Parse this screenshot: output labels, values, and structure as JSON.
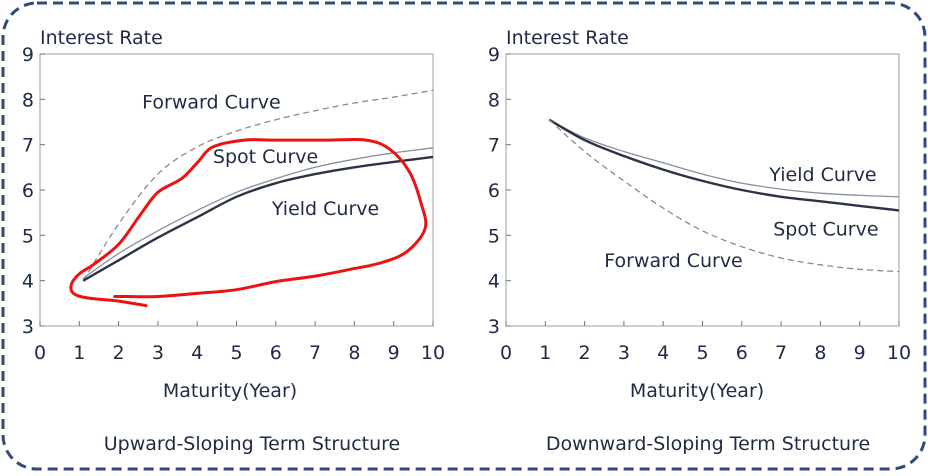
{
  "frame": {
    "border_color": "#2f4a7a"
  },
  "chart_data": [
    {
      "type": "line",
      "xlabel": "Maturity(Year)",
      "ylabel": "Interest Rate",
      "caption": "Upward-Sloping Term Structure",
      "xlim": [
        0,
        10
      ],
      "ylim": [
        3,
        9
      ],
      "xticks": [
        0,
        1,
        2,
        3,
        4,
        5,
        6,
        7,
        8,
        9,
        10
      ],
      "yticks": [
        3,
        4,
        5,
        6,
        7,
        8,
        9
      ],
      "series": [
        {
          "name": "Forward Curve",
          "style": "dashed",
          "color": "#8a8a8a",
          "x": [
            1.1,
            2,
            3,
            4,
            5,
            6,
            7,
            8,
            9,
            10
          ],
          "y": [
            4.0,
            5.25,
            6.35,
            6.95,
            7.3,
            7.55,
            7.75,
            7.92,
            8.05,
            8.2
          ]
        },
        {
          "name": "Spot Curve",
          "style": "thin",
          "color": "#8a8e9a",
          "x": [
            1.1,
            2,
            3,
            4,
            5,
            6,
            7,
            8,
            9,
            10
          ],
          "y": [
            4.05,
            4.6,
            5.1,
            5.55,
            5.95,
            6.25,
            6.5,
            6.68,
            6.82,
            6.93
          ]
        },
        {
          "name": "Yield Curve",
          "style": "thick",
          "color": "#2b3347",
          "x": [
            1.1,
            2,
            3,
            4,
            5,
            6,
            7,
            8,
            9,
            10
          ],
          "y": [
            4.0,
            4.45,
            4.95,
            5.4,
            5.85,
            6.15,
            6.35,
            6.5,
            6.62,
            6.73
          ]
        }
      ],
      "labels": [
        {
          "text": "Forward Curve",
          "x": 2.6,
          "y": 7.8
        },
        {
          "text": "Spot Curve",
          "x": 4.4,
          "y": 6.6
        },
        {
          "text": "Yield Curve",
          "x": 5.9,
          "y": 5.45
        }
      ]
    },
    {
      "type": "line",
      "xlabel": "Maturity(Year)",
      "ylabel": "Interest Rate",
      "caption": "Downward-Sloping Term Structure",
      "xlim": [
        0,
        10
      ],
      "ylim": [
        3,
        9
      ],
      "xticks": [
        0,
        1,
        2,
        3,
        4,
        5,
        6,
        7,
        8,
        9,
        10
      ],
      "yticks": [
        3,
        4,
        5,
        6,
        7,
        8,
        9
      ],
      "series": [
        {
          "name": "Yield Curve",
          "style": "thin",
          "color": "#8a8e9a",
          "x": [
            1.1,
            2,
            3,
            4,
            5,
            6,
            7,
            8,
            9,
            10
          ],
          "y": [
            7.55,
            7.15,
            6.85,
            6.6,
            6.35,
            6.15,
            6.02,
            5.93,
            5.88,
            5.85
          ]
        },
        {
          "name": "Spot Curve",
          "style": "thick",
          "color": "#2b3347",
          "x": [
            1.1,
            2,
            3,
            4,
            5,
            6,
            7,
            8,
            9,
            10
          ],
          "y": [
            7.55,
            7.1,
            6.75,
            6.45,
            6.2,
            6.0,
            5.85,
            5.75,
            5.65,
            5.55
          ]
        },
        {
          "name": "Forward Curve",
          "style": "dashed",
          "color": "#8a8a8a",
          "x": [
            1.1,
            2,
            3,
            4,
            5,
            6,
            7,
            8,
            9,
            10
          ],
          "y": [
            7.55,
            6.85,
            6.2,
            5.6,
            5.1,
            4.75,
            4.5,
            4.35,
            4.25,
            4.2
          ]
        }
      ],
      "labels": [
        {
          "text": "Yield Curve",
          "x": 6.7,
          "y": 6.2
        },
        {
          "text": "Spot Curve",
          "x": 6.8,
          "y": 5.0
        },
        {
          "text": "Forward Curve",
          "x": 2.5,
          "y": 4.3
        }
      ]
    }
  ],
  "annotation": {
    "type": "freehand-loop",
    "color": "#ee1111",
    "points": [
      [
        2.7,
        3.45
      ],
      [
        2.0,
        3.55
      ],
      [
        1.2,
        3.62
      ],
      [
        0.85,
        3.72
      ],
      [
        0.8,
        3.92
      ],
      [
        1.0,
        4.15
      ],
      [
        1.35,
        4.35
      ],
      [
        2.0,
        4.8
      ],
      [
        2.55,
        5.45
      ],
      [
        3.0,
        5.95
      ],
      [
        3.6,
        6.25
      ],
      [
        4.0,
        6.6
      ],
      [
        4.4,
        6.95
      ],
      [
        5.2,
        7.1
      ],
      [
        6.0,
        7.1
      ],
      [
        7.3,
        7.1
      ],
      [
        8.3,
        7.1
      ],
      [
        8.9,
        6.9
      ],
      [
        9.4,
        6.4
      ],
      [
        9.7,
        5.7
      ],
      [
        9.8,
        5.15
      ],
      [
        9.35,
        4.65
      ],
      [
        8.7,
        4.4
      ],
      [
        7.9,
        4.25
      ],
      [
        7.0,
        4.1
      ],
      [
        6.0,
        3.98
      ],
      [
        5.0,
        3.8
      ],
      [
        4.0,
        3.72
      ],
      [
        3.0,
        3.65
      ],
      [
        2.2,
        3.65
      ],
      [
        1.9,
        3.65
      ]
    ]
  }
}
